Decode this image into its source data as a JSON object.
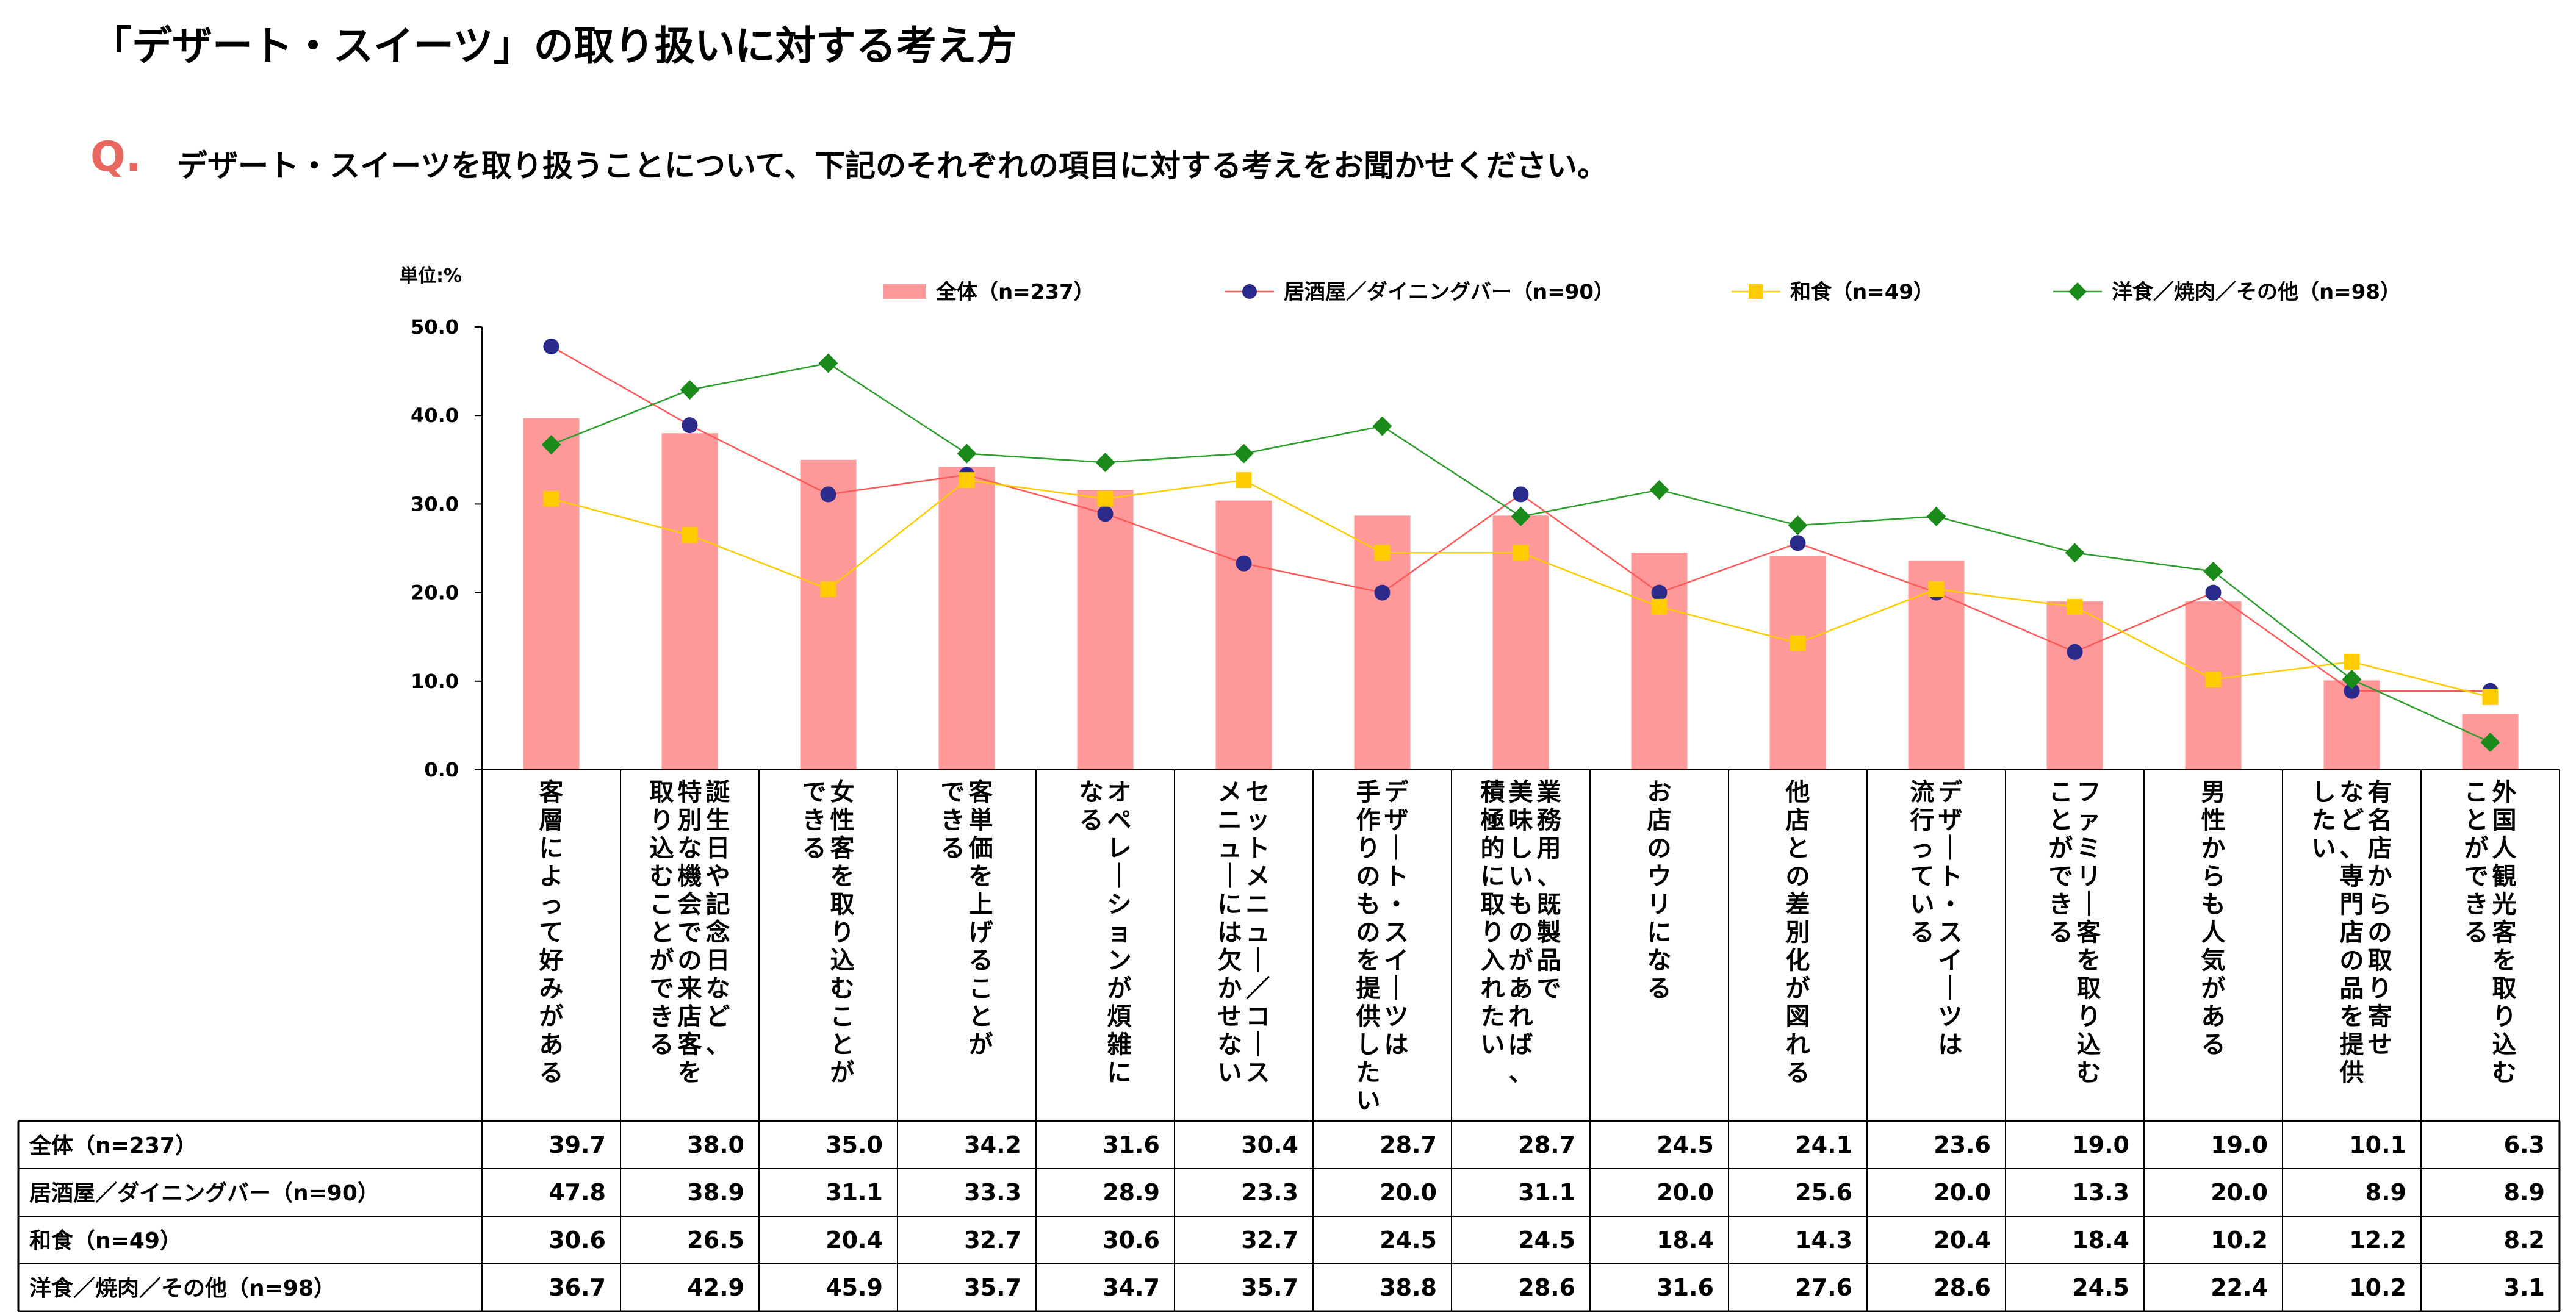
{
  "title": "「デザート・スイーツ」の取り扱いに対する考え方",
  "question": {
    "mark": "Q.",
    "text": "デザート・スイーツを取り扱うことについて、下記のそれぞれの項目に対する考えをお聞かせください。"
  },
  "colors": {
    "bar": "#ff9999",
    "izakaya": "#ff5a5a",
    "izakaya_marker": "#2b2b8c",
    "washoku": "#ffcc00",
    "yoshoku": "#2e9e2e",
    "yoshoku_marker": "#1a8a1a"
  },
  "chart_data": {
    "type": "bar",
    "unit_label": "単位:%",
    "ylim": [
      0,
      50
    ],
    "yticks": [
      "0.0",
      "10.0",
      "20.0",
      "30.0",
      "40.0",
      "50.0"
    ],
    "categories": [
      "客層によって好みがある",
      "誕生日や記念日など、特別な機会での来店客を取り込むことができる",
      "女性客を取り込むことができる",
      "客単価を上げることができる",
      "オペレーションが煩雑になる",
      "セットメニュー／コースメニューには欠かせない",
      "デザート・スイーツは手作りのものを提供したい",
      "業務用、既製品で美味しいものがあれば、積極的に取り入れたい",
      "お店のウリになる",
      "他店との差別化が図れる",
      "デザート・スイーツは流行っている",
      "ファミリー客を取り込むことができる",
      "男性からも人気がある",
      "有名店からの取り寄せなど、専門店の品を提供したい",
      "外国人観光客を取り込むことができる"
    ],
    "category_lines": [
      [
        "客層によって好みがある"
      ],
      [
        "誕生日や記念日など、",
        "特別な機会での来店客を",
        "取り込むことができる"
      ],
      [
        "女性客を取り込むことが",
        "できる"
      ],
      [
        "客単価を上げることが",
        "できる"
      ],
      [
        "オペレーションが煩雑に",
        "なる"
      ],
      [
        "セットメニュー／コース",
        "メニューには欠かせない"
      ],
      [
        "デザート・スイーツは",
        "手作りのものを提供したい"
      ],
      [
        "業務用、既製品で",
        "美味しいものがあれば、",
        "積極的に取り入れたい"
      ],
      [
        "お店のウリになる"
      ],
      [
        "他店との差別化が図れる"
      ],
      [
        "デザート・スイーツは",
        "流行っている"
      ],
      [
        "ファミリー客を取り込む",
        "ことができる"
      ],
      [
        "男性からも人気がある"
      ],
      [
        "有名店からの取り寄せ",
        "など、専門店の品を提供",
        "したい"
      ],
      [
        "外国人観光客を取り込む",
        "ことができる"
      ]
    ],
    "series": [
      {
        "name": "全体（n=237）",
        "kind": "bar",
        "values": [
          39.7,
          38.0,
          35.0,
          34.2,
          31.6,
          30.4,
          28.7,
          28.7,
          24.5,
          24.1,
          23.6,
          19.0,
          19.0,
          10.1,
          6.3
        ]
      },
      {
        "name": "居酒屋／ダイニングバー（n=90）",
        "kind": "line",
        "marker": "circle",
        "values": [
          47.8,
          38.9,
          31.1,
          33.3,
          28.9,
          23.3,
          20.0,
          31.1,
          20.0,
          25.6,
          20.0,
          13.3,
          20.0,
          8.9,
          8.9
        ]
      },
      {
        "name": "和食（n=49）",
        "kind": "line",
        "marker": "square",
        "values": [
          30.6,
          26.5,
          20.4,
          32.7,
          30.6,
          32.7,
          24.5,
          24.5,
          18.4,
          14.3,
          20.4,
          18.4,
          10.2,
          12.2,
          8.2
        ]
      },
      {
        "name": "洋食／焼肉／その他（n=98）",
        "kind": "line",
        "marker": "diamond",
        "values": [
          36.7,
          42.9,
          45.9,
          35.7,
          34.7,
          35.7,
          38.8,
          28.6,
          31.6,
          27.6,
          28.6,
          24.5,
          22.4,
          10.2,
          3.1
        ]
      }
    ],
    "legend_position": "top",
    "grid": false
  }
}
